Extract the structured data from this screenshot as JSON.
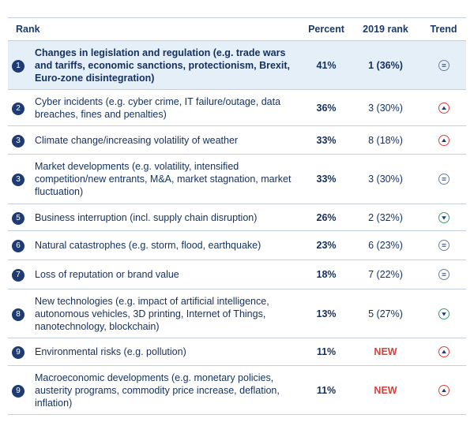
{
  "table": {
    "header": [
      "Rank",
      "Percent",
      "2019 rank",
      "Trend"
    ],
    "rows": [
      {
        "rank": "1",
        "risk": "Changes in legislation and regulation (e.g. trade wars and tariffs, economic sanctions, protectionism, Brexit, Euro-zone disintegration)",
        "percent": "41%",
        "rank_2019": "1 (36%)"
      },
      {
        "rank": "2",
        "risk": "Cyber incidents (e.g. cyber crime, IT failure/outage, data breaches, fines and penalties)",
        "percent": "36%",
        "rank_2019": "3 (30%)"
      },
      {
        "rank": "3",
        "risk": "Climate change/increasing volatility of weather",
        "percent": "33%",
        "rank_2019": "8 (18%)"
      },
      {
        "rank": "3",
        "risk": "Market developments (e.g. volatility, intensified competition/new entrants, M&A, market stagnation, market fluctuation)",
        "percent": "33%",
        "rank_2019": "3 (30%)"
      },
      {
        "rank": "5",
        "risk": "Business interruption (incl. supply chain disruption)",
        "percent": "26%",
        "rank_2019": "2 (32%)"
      },
      {
        "rank": "6",
        "risk": "Natural catastrophes (e.g. storm, flood, earthquake)",
        "percent": "23%",
        "rank_2019": "6 (23%)"
      },
      {
        "rank": "7",
        "risk": "Loss of reputation or brand value",
        "percent": "18%",
        "rank_2019": "7 (22%)"
      },
      {
        "rank": "8",
        "risk": "New technologies (e.g. impact of artificial intelligence, autonomous vehicles, 3D printing, Internet of Things, nanotechnology, blockchain)",
        "percent": "13%",
        "rank_2019": "5 (27%)"
      },
      {
        "rank": "9",
        "risk": "Environmental risks (e.g. pollution)",
        "percent": "11%",
        "rank_2019": "NEW"
      },
      {
        "rank": "9",
        "risk": "Macroeconomic developments (e.g. monetary policies, austerity programs, commodity price increase, deflation, inflation)",
        "percent": "11%",
        "rank_2019": "NEW"
      }
    ]
  }
}
